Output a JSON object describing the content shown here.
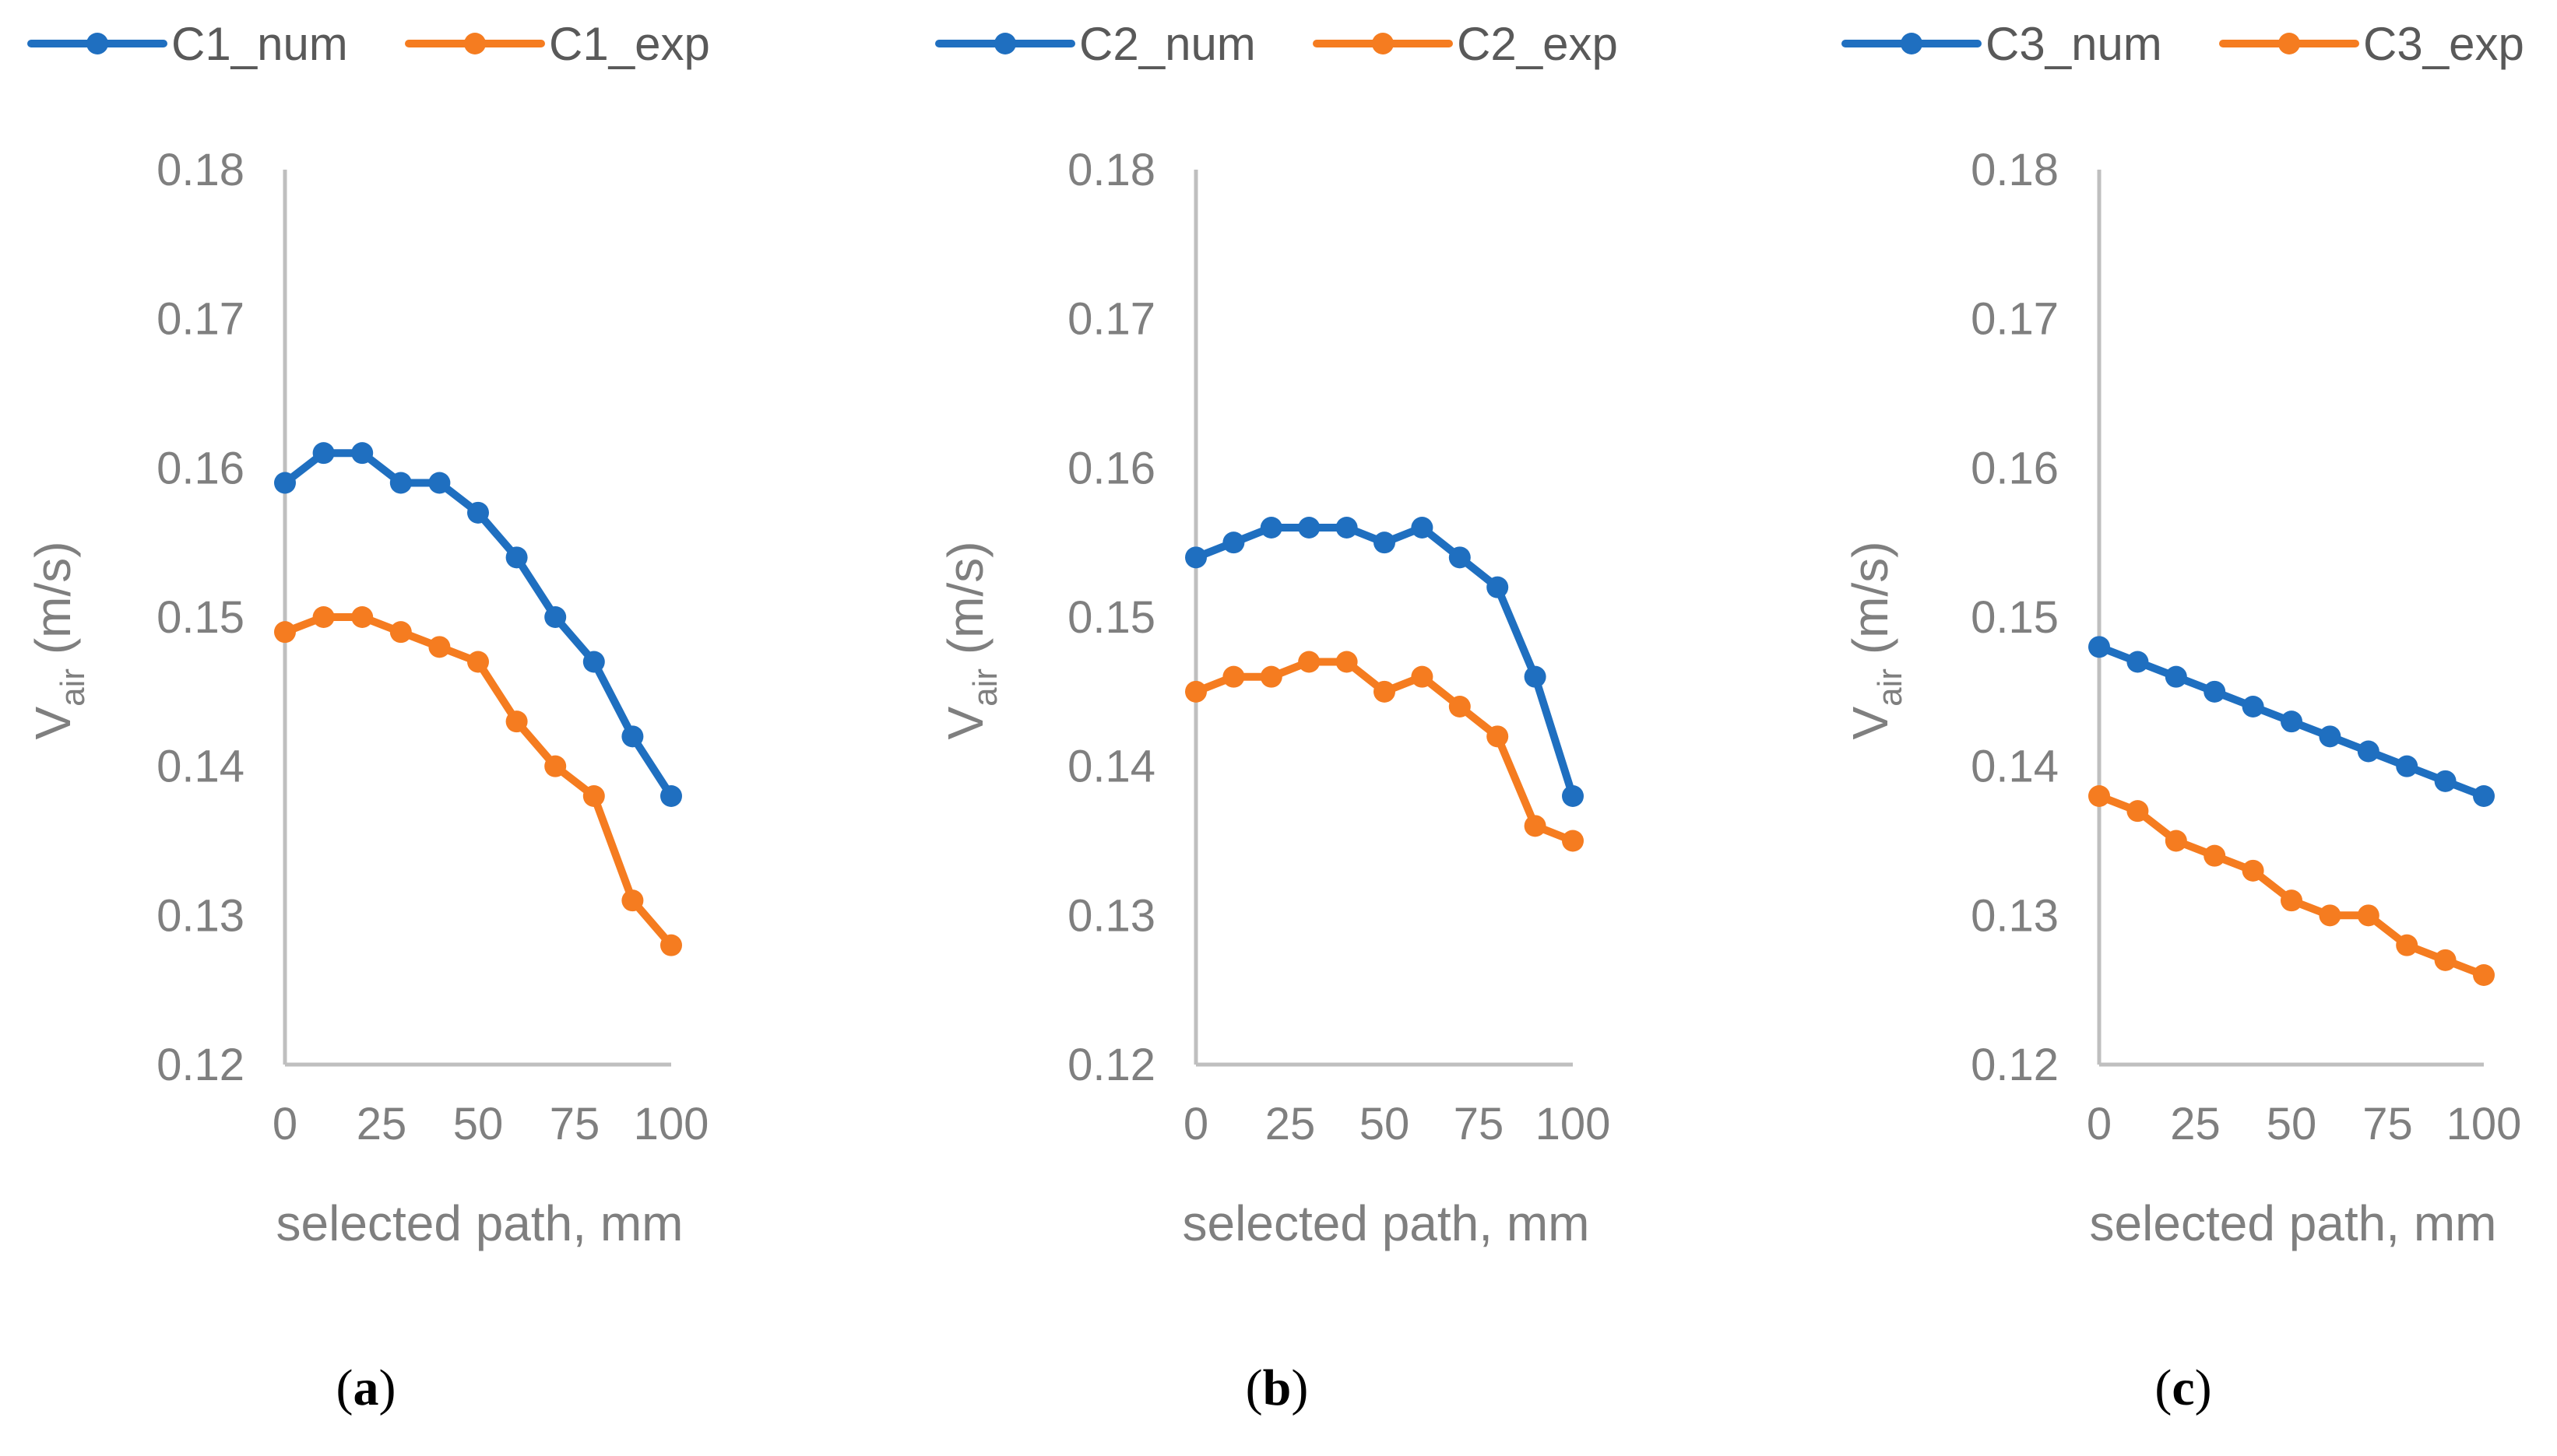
{
  "colors": {
    "num": "#1f6fc0",
    "exp": "#f57c20",
    "axis": "#bfbfbf",
    "text": "#7f7f7f",
    "legend_text": "#595959"
  },
  "chart_data": [
    {
      "type": "line",
      "panel": "a",
      "panel_label": {
        "open": "(",
        "letter": "a",
        "close": ")"
      },
      "xlabel": "selected path, mm",
      "ylabel": {
        "base": "V",
        "sub": "air",
        "unit": " (m/s)"
      },
      "ylim": [
        0.12,
        0.18
      ],
      "yticks": [
        "0.12",
        "0.13",
        "0.14",
        "0.15",
        "0.16",
        "0.17",
        "0.18"
      ],
      "xlim": [
        0,
        100
      ],
      "xticks": [
        "0",
        "25",
        "50",
        "75",
        "100"
      ],
      "x": [
        0,
        10,
        20,
        30,
        40,
        50,
        60,
        70,
        80,
        90,
        100
      ],
      "series": [
        {
          "name": "C1_num",
          "values": [
            0.159,
            0.161,
            0.161,
            0.159,
            0.159,
            0.157,
            0.154,
            0.15,
            0.147,
            0.142,
            0.138
          ]
        },
        {
          "name": "C1_exp",
          "values": [
            0.149,
            0.15,
            0.15,
            0.149,
            0.148,
            0.147,
            0.143,
            0.14,
            0.138,
            0.131,
            0.128
          ]
        }
      ]
    },
    {
      "type": "line",
      "panel": "b",
      "panel_label": {
        "open": "(",
        "letter": "b",
        "close": ")"
      },
      "xlabel": "selected path, mm",
      "ylabel": {
        "base": "V",
        "sub": "air",
        "unit": " (m/s)"
      },
      "ylim": [
        0.12,
        0.18
      ],
      "yticks": [
        "0.12",
        "0.13",
        "0.14",
        "0.15",
        "0.16",
        "0.17",
        "0.18"
      ],
      "xlim": [
        0,
        100
      ],
      "xticks": [
        "0",
        "25",
        "50",
        "75",
        "100"
      ],
      "x": [
        0,
        10,
        20,
        30,
        40,
        50,
        60,
        70,
        80,
        90,
        100
      ],
      "series": [
        {
          "name": "C2_num",
          "values": [
            0.154,
            0.155,
            0.156,
            0.156,
            0.156,
            0.155,
            0.156,
            0.154,
            0.152,
            0.146,
            0.138
          ]
        },
        {
          "name": "C2_exp",
          "values": [
            0.145,
            0.146,
            0.146,
            0.147,
            0.147,
            0.145,
            0.146,
            0.144,
            0.142,
            0.136,
            0.135
          ]
        }
      ]
    },
    {
      "type": "line",
      "panel": "c",
      "panel_label": {
        "open": "(",
        "letter": "c",
        "close": ")"
      },
      "xlabel": "selected path, mm",
      "ylabel": {
        "base": "V",
        "sub": "air",
        "unit": " (m/s)"
      },
      "ylim": [
        0.12,
        0.18
      ],
      "yticks": [
        "0.12",
        "0.13",
        "0.14",
        "0.15",
        "0.16",
        "0.17",
        "0.18"
      ],
      "xlim": [
        0,
        100
      ],
      "xticks": [
        "0",
        "25",
        "50",
        "75",
        "100"
      ],
      "x": [
        0,
        10,
        20,
        30,
        40,
        50,
        60,
        70,
        80,
        90,
        100
      ],
      "series": [
        {
          "name": "C3_num",
          "values": [
            0.148,
            0.147,
            0.146,
            0.145,
            0.144,
            0.143,
            0.142,
            0.141,
            0.14,
            0.139,
            0.138
          ]
        },
        {
          "name": "C3_exp",
          "values": [
            0.138,
            0.137,
            0.135,
            0.134,
            0.133,
            0.131,
            0.13,
            0.13,
            0.128,
            0.127,
            0.126
          ]
        }
      ]
    }
  ]
}
